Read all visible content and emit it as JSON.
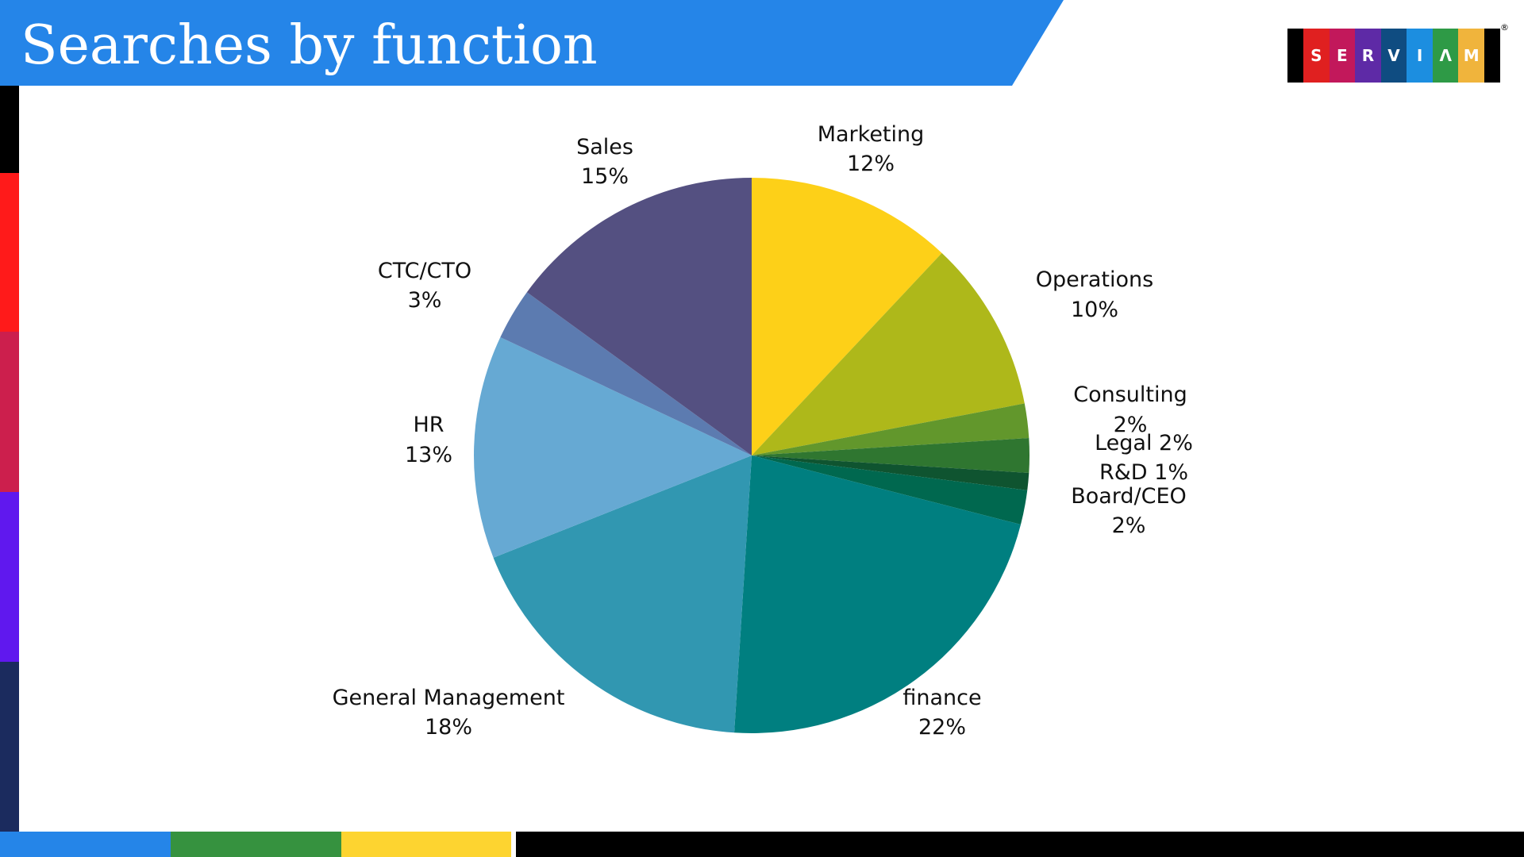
{
  "header": {
    "title": "Searches by function"
  },
  "brand": {
    "letters": [
      "S",
      "E",
      "R",
      "V",
      "I",
      "Λ",
      "M"
    ],
    "mark": "®"
  },
  "colors": {
    "banner": "#2585e8",
    "left_stripe": [
      "#000000",
      "#ff1a1a",
      "#cc1f4d",
      "#6018ee",
      "#1b2b5e"
    ],
    "bottom_stripe": [
      "#2585e8",
      "#36923f",
      "#fdd430",
      "#ffffff",
      "#000000"
    ],
    "logo_letters": [
      "#e02020",
      "#c2185b",
      "#5e2aa6",
      "#0f4c81",
      "#1c8ee0",
      "#2e9a46",
      "#f0b43c"
    ]
  },
  "chart_data": {
    "type": "pie",
    "title": "Searches by function",
    "start_angle": "12 o'clock, clockwise",
    "slices": [
      {
        "name": "Marketing",
        "value": 12,
        "label": "Marketing",
        "pct_label": "12%",
        "color": "#fdd018"
      },
      {
        "name": "Operations",
        "value": 10,
        "label": "Operations",
        "pct_label": "10%",
        "color": "#aeb81a"
      },
      {
        "name": "Consulting",
        "value": 2,
        "label": "Consulting",
        "pct_label": "2%",
        "color": "#62972c"
      },
      {
        "name": "Legal",
        "value": 2,
        "label": "Legal 2%",
        "pct_label": "",
        "color": "#2f7630"
      },
      {
        "name": "R&D",
        "value": 1,
        "label": "R&D 1%",
        "pct_label": "",
        "color": "#0f5430"
      },
      {
        "name": "Board/CEO",
        "value": 2,
        "label": "Board/CEO",
        "pct_label": "2%",
        "color": "#00684f"
      },
      {
        "name": "finance",
        "value": 22,
        "label": "finance",
        "pct_label": "22%",
        "color": "#007f80"
      },
      {
        "name": "General Management",
        "value": 18,
        "label": "General Management",
        "pct_label": "18%",
        "color": "#3197b1"
      },
      {
        "name": "HR",
        "value": 13,
        "label": "HR",
        "pct_label": "13%",
        "color": "#66a9d3"
      },
      {
        "name": "CTC/CTO",
        "value": 3,
        "label": "CTC/CTO",
        "pct_label": "3%",
        "color": "#5c7bb0"
      },
      {
        "name": "Sales",
        "value": 15,
        "label": "Sales",
        "pct_label": "15%",
        "color": "#545081"
      }
    ]
  }
}
